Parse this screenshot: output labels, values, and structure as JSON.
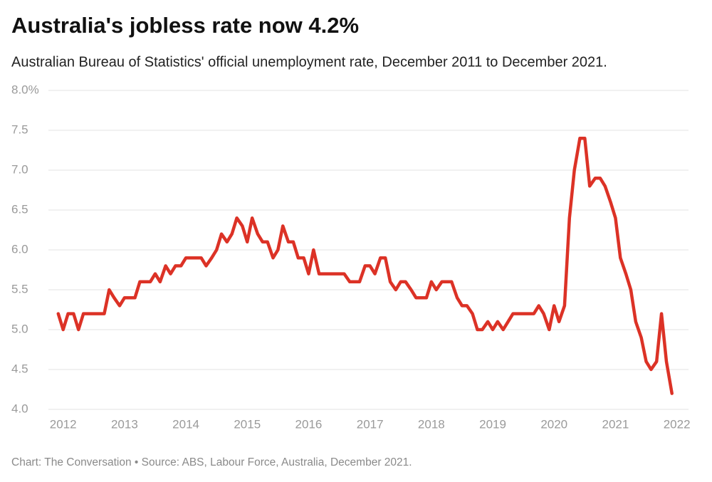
{
  "chart_data": {
    "type": "line",
    "title": "Australia's jobless rate now 4.2%",
    "subtitle": "Australian Bureau of Statistics' official unemployment rate, December 2011 to December 2021.",
    "source": "Chart: The Conversation • Source: ABS, Labour Force, Australia, December 2021.",
    "color": "#dc3226",
    "grid": true,
    "x": [
      2011.92,
      2012.0,
      2012.08,
      2012.17,
      2012.25,
      2012.33,
      2012.42,
      2012.5,
      2012.58,
      2012.67,
      2012.75,
      2012.83,
      2012.92,
      2013.0,
      2013.08,
      2013.17,
      2013.25,
      2013.33,
      2013.42,
      2013.5,
      2013.58,
      2013.67,
      2013.75,
      2013.83,
      2013.92,
      2014.0,
      2014.08,
      2014.17,
      2014.25,
      2014.33,
      2014.42,
      2014.5,
      2014.58,
      2014.67,
      2014.75,
      2014.83,
      2014.92,
      2015.0,
      2015.08,
      2015.17,
      2015.25,
      2015.33,
      2015.42,
      2015.5,
      2015.58,
      2015.67,
      2015.75,
      2015.83,
      2015.92,
      2016.0,
      2016.08,
      2016.17,
      2016.25,
      2016.33,
      2016.42,
      2016.5,
      2016.58,
      2016.67,
      2016.75,
      2016.83,
      2016.92,
      2017.0,
      2017.08,
      2017.17,
      2017.25,
      2017.33,
      2017.42,
      2017.5,
      2017.58,
      2017.67,
      2017.75,
      2017.83,
      2017.92,
      2018.0,
      2018.08,
      2018.17,
      2018.25,
      2018.33,
      2018.42,
      2018.5,
      2018.58,
      2018.67,
      2018.75,
      2018.83,
      2018.92,
      2019.0,
      2019.08,
      2019.17,
      2019.25,
      2019.33,
      2019.42,
      2019.5,
      2019.58,
      2019.67,
      2019.75,
      2019.83,
      2019.92,
      2020.0,
      2020.08,
      2020.17,
      2020.25,
      2020.33,
      2020.42,
      2020.5,
      2020.58,
      2020.67,
      2020.75,
      2020.83,
      2020.92,
      2021.0,
      2021.08,
      2021.17,
      2021.25,
      2021.33,
      2021.42,
      2021.5,
      2021.58,
      2021.67,
      2021.75,
      2021.83,
      2021.92
    ],
    "values": [
      5.2,
      5.0,
      5.2,
      5.2,
      5.0,
      5.2,
      5.2,
      5.2,
      5.2,
      5.2,
      5.5,
      5.4,
      5.3,
      5.4,
      5.4,
      5.4,
      5.6,
      5.6,
      5.6,
      5.7,
      5.6,
      5.8,
      5.7,
      5.8,
      5.8,
      5.9,
      5.9,
      5.9,
      5.9,
      5.8,
      5.9,
      6.0,
      6.2,
      6.1,
      6.2,
      6.4,
      6.3,
      6.1,
      6.4,
      6.2,
      6.1,
      6.1,
      5.9,
      6.0,
      6.3,
      6.1,
      6.1,
      5.9,
      5.9,
      5.7,
      6.0,
      5.7,
      5.7,
      5.7,
      5.7,
      5.7,
      5.7,
      5.6,
      5.6,
      5.6,
      5.8,
      5.8,
      5.7,
      5.9,
      5.9,
      5.6,
      5.5,
      5.6,
      5.6,
      5.5,
      5.4,
      5.4,
      5.4,
      5.6,
      5.5,
      5.6,
      5.6,
      5.6,
      5.4,
      5.3,
      5.3,
      5.2,
      5.0,
      5.0,
      5.1,
      5.0,
      5.1,
      5.0,
      5.1,
      5.2,
      5.2,
      5.2,
      5.2,
      5.2,
      5.3,
      5.2,
      5.0,
      5.3,
      5.1,
      5.3,
      6.4,
      7.0,
      7.4,
      7.4,
      6.8,
      6.9,
      6.9,
      6.8,
      6.6,
      6.4,
      5.9,
      5.7,
      5.5,
      5.1,
      4.9,
      4.6,
      4.5,
      4.6,
      5.2,
      4.6,
      4.2
    ],
    "xlim": [
      2011.76,
      2022.19
    ],
    "xticks": [
      2012,
      2013,
      2014,
      2015,
      2016,
      2017,
      2018,
      2019,
      2020,
      2021,
      2022
    ],
    "ylim": [
      4,
      8
    ],
    "yticks": [
      {
        "value": 4,
        "label": "4.0"
      },
      4.5,
      {
        "value": 5,
        "label": "5.0"
      },
      5.5,
      {
        "value": 6,
        "label": "6.0"
      },
      6.5,
      {
        "value": 7,
        "label": "7.0"
      },
      7.5,
      {
        "value": 8,
        "label": "8.0%"
      }
    ]
  }
}
